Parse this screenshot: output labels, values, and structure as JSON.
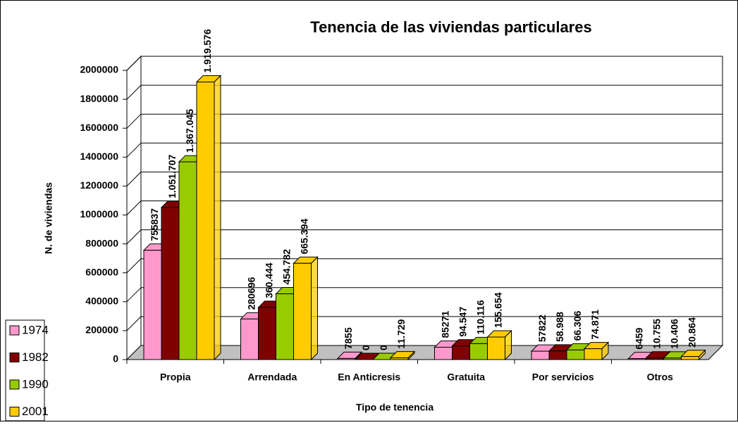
{
  "chart_data": {
    "type": "bar3d",
    "title": "Tenencia de las viviendas particulares",
    "x_label": "Tipo de tenencia",
    "y_label": "N. de viviendas",
    "categories": [
      "Propia",
      "Arrendada",
      "En Anticresis",
      "Gratuita",
      "Por servicios",
      "Otros"
    ],
    "series": [
      {
        "name": "1974",
        "color": "#ff99cc",
        "values": [
          755837,
          280696,
          7855,
          85271,
          57822,
          6459
        ],
        "value_labels": [
          "755837",
          "280696",
          "7855",
          "85271",
          "57822",
          "6459"
        ]
      },
      {
        "name": "1982",
        "color": "#800000",
        "values": [
          1051707,
          360444,
          0,
          94547,
          58988,
          10755
        ],
        "value_labels": [
          "1.051.707",
          "360.444",
          "0",
          "94.547",
          "58.988",
          "10.755"
        ]
      },
      {
        "name": "1990",
        "color": "#99cc00",
        "values": [
          1367045,
          454782,
          0,
          110116,
          66306,
          10406
        ],
        "value_labels": [
          "1.367.045",
          "454.782",
          "0",
          "110.116",
          "66.306",
          "10.406"
        ]
      },
      {
        "name": "2001",
        "color": "#ffcc00",
        "values": [
          1919576,
          665394,
          11729,
          155654,
          74871,
          20864
        ],
        "value_labels": [
          "1.919.576",
          "665.394",
          "11.729",
          "155.654",
          "74.871",
          "20.864"
        ]
      }
    ],
    "ylim": [
      0,
      2000000
    ],
    "yticks": [
      0,
      200000,
      400000,
      600000,
      800000,
      1000000,
      1200000,
      1400000,
      1600000,
      1800000,
      2000000
    ],
    "grid": true,
    "legend": "bottom-left"
  }
}
